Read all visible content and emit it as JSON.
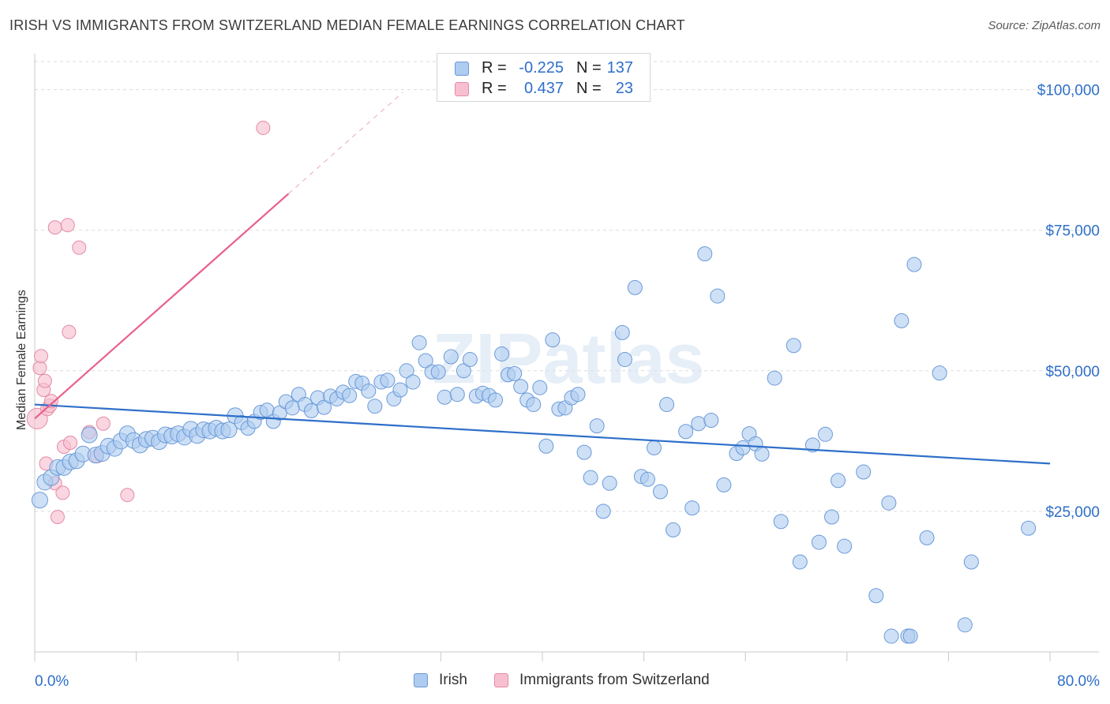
{
  "header": {
    "title": "IRISH VS IMMIGRANTS FROM SWITZERLAND MEDIAN FEMALE EARNINGS CORRELATION CHART",
    "source": "Source: ZipAtlas.com"
  },
  "watermark": "ZIPatlas",
  "colors": {
    "irish_fill": "#aecbf0",
    "irish_stroke": "#6a9ad8",
    "irish_line": "#2e6fc9",
    "swiss_fill": "#f7c0d0",
    "swiss_stroke": "#e58aa6",
    "swiss_line": "#e8608a",
    "grid": "#dcdcdc",
    "axis_text": "#2e6fc9"
  },
  "legend": {
    "rows": [
      {
        "series": "Irish",
        "r_label": "R =",
        "r_value": "-0.225",
        "n_label": "N =",
        "n_value": "137"
      },
      {
        "series": "Immigrants from Switzerland",
        "r_label": "R =",
        "r_value": "0.437",
        "n_label": "N =",
        "n_value": "23"
      }
    ]
  },
  "chart_data": {
    "type": "scatter",
    "title": "IRISH VS IMMIGRANTS FROM SWITZERLAND MEDIAN FEMALE EARNINGS CORRELATION CHART",
    "xlabel": "",
    "ylabel": "Median Female Earnings",
    "xlim": [
      0,
      80
    ],
    "ylim": [
      0,
      105000
    ],
    "x_tick_labels": [
      "0.0%",
      "80.0%"
    ],
    "y_ticks": [
      25000,
      50000,
      75000,
      100000
    ],
    "y_tick_labels": [
      "$25,000",
      "$50,000",
      "$75,000",
      "$100,000"
    ],
    "grid": true,
    "legend_position": "top-center",
    "series": [
      {
        "name": "Irish",
        "trend": {
          "x": [
            0,
            80
          ],
          "y": [
            44000,
            33500
          ]
        },
        "points": [
          {
            "x": 0.4,
            "y": 27000
          },
          {
            "x": 0.8,
            "y": 30200
          },
          {
            "x": 1.3,
            "y": 31000
          },
          {
            "x": 1.8,
            "y": 32800
          },
          {
            "x": 2.3,
            "y": 32800
          },
          {
            "x": 2.8,
            "y": 33800
          },
          {
            "x": 3.3,
            "y": 34000
          },
          {
            "x": 3.8,
            "y": 35200
          },
          {
            "x": 4.3,
            "y": 38600
          },
          {
            "x": 4.8,
            "y": 35000
          },
          {
            "x": 5.3,
            "y": 35300
          },
          {
            "x": 5.8,
            "y": 36600
          },
          {
            "x": 6.3,
            "y": 36200
          },
          {
            "x": 6.8,
            "y": 37500
          },
          {
            "x": 7.3,
            "y": 38800
          },
          {
            "x": 7.8,
            "y": 37600
          },
          {
            "x": 8.3,
            "y": 36800
          },
          {
            "x": 8.8,
            "y": 37800
          },
          {
            "x": 9.3,
            "y": 38000
          },
          {
            "x": 9.8,
            "y": 37400
          },
          {
            "x": 10.3,
            "y": 38600
          },
          {
            "x": 10.8,
            "y": 38400
          },
          {
            "x": 11.3,
            "y": 38800
          },
          {
            "x": 11.8,
            "y": 38200
          },
          {
            "x": 12.3,
            "y": 39600
          },
          {
            "x": 12.8,
            "y": 38500
          },
          {
            "x": 13.3,
            "y": 39500
          },
          {
            "x": 13.8,
            "y": 39300
          },
          {
            "x": 14.3,
            "y": 39800
          },
          {
            "x": 14.8,
            "y": 39300
          },
          {
            "x": 15.3,
            "y": 39500
          },
          {
            "x": 15.8,
            "y": 42000
          },
          {
            "x": 16.3,
            "y": 40800
          },
          {
            "x": 16.8,
            "y": 39800
          },
          {
            "x": 17.3,
            "y": 41000
          },
          {
            "x": 17.8,
            "y": 42600
          },
          {
            "x": 18.3,
            "y": 43000
          },
          {
            "x": 18.8,
            "y": 41000
          },
          {
            "x": 19.3,
            "y": 42500
          },
          {
            "x": 19.8,
            "y": 44500
          },
          {
            "x": 20.3,
            "y": 43400
          },
          {
            "x": 20.8,
            "y": 45800
          },
          {
            "x": 21.3,
            "y": 44000
          },
          {
            "x": 21.8,
            "y": 42900
          },
          {
            "x": 22.3,
            "y": 45200
          },
          {
            "x": 22.8,
            "y": 43500
          },
          {
            "x": 23.3,
            "y": 45500
          },
          {
            "x": 23.8,
            "y": 45000
          },
          {
            "x": 24.3,
            "y": 46200
          },
          {
            "x": 24.8,
            "y": 45600
          },
          {
            "x": 25.3,
            "y": 48100
          },
          {
            "x": 25.8,
            "y": 47800
          },
          {
            "x": 26.3,
            "y": 46400
          },
          {
            "x": 26.8,
            "y": 43700
          },
          {
            "x": 27.3,
            "y": 48000
          },
          {
            "x": 27.8,
            "y": 48300
          },
          {
            "x": 28.3,
            "y": 45000
          },
          {
            "x": 28.8,
            "y": 46600
          },
          {
            "x": 29.3,
            "y": 50000
          },
          {
            "x": 29.8,
            "y": 48000
          },
          {
            "x": 30.3,
            "y": 55000
          },
          {
            "x": 30.8,
            "y": 51800
          },
          {
            "x": 31.3,
            "y": 49800
          },
          {
            "x": 31.8,
            "y": 49800
          },
          {
            "x": 32.3,
            "y": 45300
          },
          {
            "x": 32.8,
            "y": 52500
          },
          {
            "x": 33.3,
            "y": 45800
          },
          {
            "x": 33.8,
            "y": 50000
          },
          {
            "x": 34.3,
            "y": 52000
          },
          {
            "x": 34.8,
            "y": 45500
          },
          {
            "x": 35.3,
            "y": 46000
          },
          {
            "x": 35.8,
            "y": 45600
          },
          {
            "x": 36.3,
            "y": 44800
          },
          {
            "x": 36.8,
            "y": 53000
          },
          {
            "x": 37.3,
            "y": 49300
          },
          {
            "x": 37.8,
            "y": 49500
          },
          {
            "x": 38.3,
            "y": 47200
          },
          {
            "x": 38.8,
            "y": 44800
          },
          {
            "x": 39.3,
            "y": 44000
          },
          {
            "x": 39.8,
            "y": 47000
          },
          {
            "x": 40.3,
            "y": 36600
          },
          {
            "x": 40.8,
            "y": 55500
          },
          {
            "x": 41.3,
            "y": 43200
          },
          {
            "x": 41.8,
            "y": 43400
          },
          {
            "x": 42.3,
            "y": 45200
          },
          {
            "x": 42.8,
            "y": 45800
          },
          {
            "x": 43.3,
            "y": 35500
          },
          {
            "x": 43.8,
            "y": 31000
          },
          {
            "x": 44.3,
            "y": 40200
          },
          {
            "x": 44.8,
            "y": 25000
          },
          {
            "x": 45.3,
            "y": 30000
          },
          {
            "x": 46.3,
            "y": 56800
          },
          {
            "x": 46.5,
            "y": 52000
          },
          {
            "x": 47.3,
            "y": 64800
          },
          {
            "x": 47.8,
            "y": 31200
          },
          {
            "x": 48.3,
            "y": 30700
          },
          {
            "x": 48.8,
            "y": 36300
          },
          {
            "x": 49.3,
            "y": 28500
          },
          {
            "x": 49.8,
            "y": 44000
          },
          {
            "x": 50.3,
            "y": 21700
          },
          {
            "x": 51.3,
            "y": 39200
          },
          {
            "x": 51.8,
            "y": 25600
          },
          {
            "x": 52.3,
            "y": 40600
          },
          {
            "x": 52.8,
            "y": 70800
          },
          {
            "x": 53.3,
            "y": 41200
          },
          {
            "x": 53.8,
            "y": 63300
          },
          {
            "x": 54.3,
            "y": 29700
          },
          {
            "x": 55.3,
            "y": 35300
          },
          {
            "x": 55.8,
            "y": 36300
          },
          {
            "x": 56.3,
            "y": 38800
          },
          {
            "x": 56.8,
            "y": 37000
          },
          {
            "x": 57.3,
            "y": 35200
          },
          {
            "x": 58.3,
            "y": 48700
          },
          {
            "x": 58.8,
            "y": 23200
          },
          {
            "x": 59.8,
            "y": 54500
          },
          {
            "x": 60.3,
            "y": 16000
          },
          {
            "x": 61.3,
            "y": 36800
          },
          {
            "x": 61.8,
            "y": 19500
          },
          {
            "x": 62.3,
            "y": 38700
          },
          {
            "x": 62.8,
            "y": 24000
          },
          {
            "x": 63.3,
            "y": 30500
          },
          {
            "x": 63.8,
            "y": 18800
          },
          {
            "x": 65.3,
            "y": 32000
          },
          {
            "x": 66.3,
            "y": 10000
          },
          {
            "x": 67.3,
            "y": 26500
          },
          {
            "x": 68.3,
            "y": 58900
          },
          {
            "x": 69.3,
            "y": 68900
          },
          {
            "x": 70.3,
            "y": 20300
          },
          {
            "x": 71.3,
            "y": 49600
          },
          {
            "x": 73.3,
            "y": 4800
          },
          {
            "x": 73.8,
            "y": 16000
          },
          {
            "x": 67.5,
            "y": 2800
          },
          {
            "x": 68.8,
            "y": 2800
          },
          {
            "x": 69.0,
            "y": 2800
          },
          {
            "x": 78.3,
            "y": 22000
          }
        ]
      },
      {
        "name": "Immigrants from Switzerland",
        "trend": {
          "x": [
            0,
            20
          ],
          "y": [
            41500,
            81500
          ],
          "dashed_to": {
            "x": 29,
            "y": 99500
          }
        },
        "points": [
          {
            "x": 0.2,
            "y": 41500
          },
          {
            "x": 0.4,
            "y": 50500
          },
          {
            "x": 0.5,
            "y": 52600
          },
          {
            "x": 0.7,
            "y": 46600
          },
          {
            "x": 0.8,
            "y": 48200
          },
          {
            "x": 0.9,
            "y": 33500
          },
          {
            "x": 1.0,
            "y": 43200
          },
          {
            "x": 1.2,
            "y": 43800
          },
          {
            "x": 1.3,
            "y": 44600
          },
          {
            "x": 1.6,
            "y": 30000
          },
          {
            "x": 1.6,
            "y": 75500
          },
          {
            "x": 1.8,
            "y": 24000
          },
          {
            "x": 2.2,
            "y": 28300
          },
          {
            "x": 2.3,
            "y": 36500
          },
          {
            "x": 2.6,
            "y": 75900
          },
          {
            "x": 2.7,
            "y": 56900
          },
          {
            "x": 2.8,
            "y": 37200
          },
          {
            "x": 3.5,
            "y": 71900
          },
          {
            "x": 4.3,
            "y": 39100
          },
          {
            "x": 4.9,
            "y": 34800
          },
          {
            "x": 5.4,
            "y": 40600
          },
          {
            "x": 7.3,
            "y": 27900
          },
          {
            "x": 18.0,
            "y": 93200
          }
        ]
      }
    ]
  }
}
